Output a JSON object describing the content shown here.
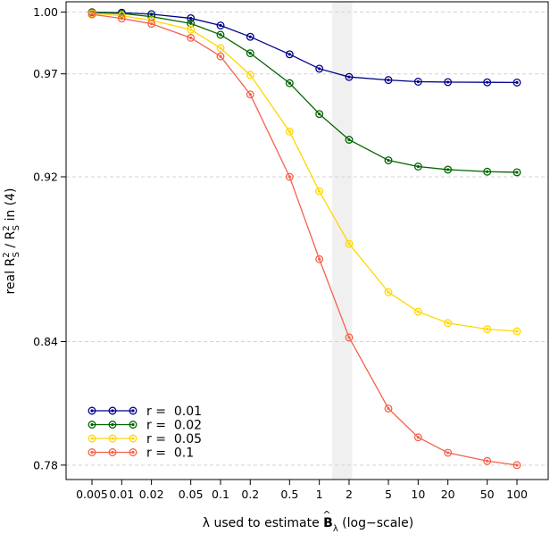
{
  "chart_data": {
    "type": "line",
    "title": "",
    "xlabel": "λ used to estimate B̂_λ (log−scale)",
    "xlabel_parts": {
      "pre": "λ used to estimate ",
      "sym": "B",
      "hat": "^",
      "sub": "λ",
      "post": " (log−scale)"
    },
    "ylabel": "real R_S^2 / R_S^2 in (4)",
    "ylabel_parts": {
      "a": "real R",
      "a_sup": "2",
      "a_sub": "S",
      "b": " / R",
      "b_sup": "2",
      "b_sub": "S",
      "c": " in (4)"
    },
    "x_scale": "log",
    "x": [
      0.005,
      0.01,
      0.02,
      0.05,
      0.1,
      0.2,
      0.5,
      1,
      2,
      5,
      10,
      20,
      50,
      100
    ],
    "x_tick_labels": [
      "0.005",
      "0.01",
      "0.02",
      "0.05",
      "0.1",
      "0.2",
      "0.5",
      "1",
      "2",
      "5",
      "10",
      "20",
      "50",
      "100"
    ],
    "ylim": [
      0.773,
      1.005
    ],
    "y_ticks": [
      0.78,
      0.84,
      0.92,
      0.97,
      1.0
    ],
    "y_tick_labels": [
      "0.78",
      "0.84",
      "0.92",
      "0.97",
      "1.00"
    ],
    "grid": "horizontal dashed at y ticks",
    "highlight_band_x": [
      1.35,
      2.15
    ],
    "legend_position": "bottom-left",
    "series": [
      {
        "name": "r = 0.01",
        "label": "r =  0.01",
        "color": "#00008B",
        "values": [
          0.9999,
          0.9997,
          0.999,
          0.997,
          0.9935,
          0.988,
          0.9795,
          0.9725,
          0.9685,
          0.967,
          0.9662,
          0.966,
          0.9659,
          0.9658
        ]
      },
      {
        "name": "r = 0.02",
        "label": "r =  0.02",
        "color": "#006400",
        "values": [
          0.9998,
          0.9993,
          0.9978,
          0.9945,
          0.989,
          0.98,
          0.9655,
          0.9505,
          0.938,
          0.928,
          0.925,
          0.9235,
          0.9225,
          0.9222
        ]
      },
      {
        "name": "r = 0.05",
        "label": "r =  0.05",
        "color": "#FFD700",
        "values": [
          0.9994,
          0.9982,
          0.996,
          0.9915,
          0.9825,
          0.9695,
          0.942,
          0.913,
          0.8875,
          0.864,
          0.8545,
          0.849,
          0.846,
          0.845
        ]
      },
      {
        "name": "r = 0.1",
        "label": "r =  0.1",
        "color": "#F4624B",
        "values": [
          0.9989,
          0.9969,
          0.9943,
          0.9875,
          0.9785,
          0.96,
          0.92,
          0.88,
          0.842,
          0.8075,
          0.7935,
          0.786,
          0.782,
          0.78
        ]
      }
    ]
  }
}
